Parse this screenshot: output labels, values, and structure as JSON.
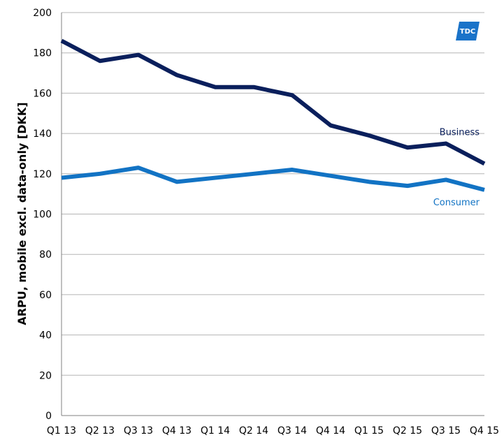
{
  "chart_data": {
    "type": "line",
    "categories": [
      "Q1 13",
      "Q2 13",
      "Q3 13",
      "Q4 13",
      "Q1 14",
      "Q2 14",
      "Q3 14",
      "Q4 14",
      "Q1 15",
      "Q2 15",
      "Q3 15",
      "Q4 15"
    ],
    "series": [
      {
        "name": "Business",
        "color": "#0a1f5c",
        "values": [
          186,
          176,
          179,
          169,
          163,
          163,
          159,
          144,
          139,
          133,
          135,
          125
        ]
      },
      {
        "name": "Consumer",
        "color": "#1273c4",
        "values": [
          118,
          120,
          123,
          116,
          118,
          120,
          122,
          119,
          116,
          114,
          117,
          112
        ]
      }
    ],
    "ylabel": "ARPU, mobile excl. data-only [DKK]",
    "ylim": [
      0,
      200
    ],
    "yticks": [
      0,
      20,
      40,
      60,
      80,
      100,
      120,
      140,
      160,
      180,
      200
    ],
    "grid": true,
    "logo": {
      "text": "TDC",
      "color": "#1a73c9"
    }
  }
}
